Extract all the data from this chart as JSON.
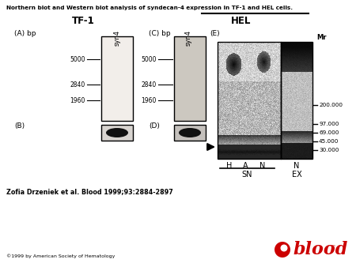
{
  "title": "Northern blot and Western blot analysis of syndecan-4 expression in TF-1 and HEL cells.",
  "tf1_label": "TF-1",
  "hel_label": "HEL",
  "panel_a_label": "(A) bp",
  "panel_b_label": "(B)",
  "panel_c_label": "(C) bp",
  "panel_d_label": "(D)",
  "panel_e_label": "(E)",
  "syn4_label": "syn4",
  "mr_label": "Mr",
  "bp_marks_a": [
    "5000",
    "2840",
    "1960"
  ],
  "bp_marks_c": [
    "5000",
    "2840",
    "1960"
  ],
  "mr_marks": [
    "200.000",
    "97.000",
    "69.000",
    "45.000",
    "30.000"
  ],
  "h_label": "H",
  "a_label": "A",
  "n_label1": "N",
  "n_label2": "N",
  "sn_label": "SN",
  "ex_label": "EX",
  "citation": "Zofia Drzeniek et al. Blood 1999;93:2884-2897",
  "copyright": "©1999 by American Society of Hematology",
  "blood_text": "blood",
  "blood_color": "#cc0000",
  "bg_color": "#ffffff",
  "panel_bg_a": "#f2eeea",
  "panel_bg_c": "#ccc8c0",
  "panel_b_fill": "#111111",
  "panel_d_fill": "#111111",
  "band_2840_a_color": "#a09890",
  "band_2840_c_color": "#606058"
}
